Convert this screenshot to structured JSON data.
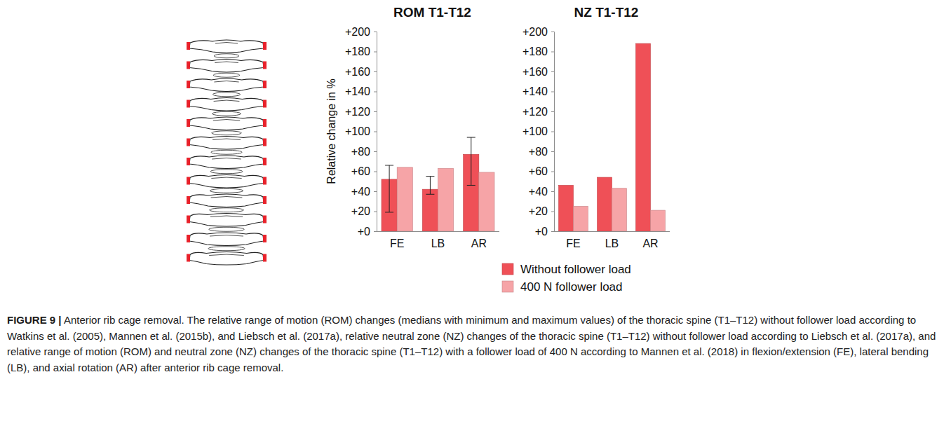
{
  "chart_data": [
    {
      "type": "bar",
      "title": "ROM T1-T12",
      "ylabel": "Relative change in %",
      "categories": [
        "FE",
        "LB",
        "AR"
      ],
      "series": [
        {
          "name": "Without follower load",
          "color": "#ef5057",
          "values": [
            52,
            42,
            77
          ],
          "min": [
            19,
            37,
            46
          ],
          "max": [
            66,
            55,
            94
          ]
        },
        {
          "name": "400 N follower load",
          "color": "#f6a4a7",
          "values": [
            64,
            63,
            59
          ]
        }
      ],
      "ylim": [
        0,
        200
      ],
      "yticks": [
        {
          "value": 0,
          "label": "+0"
        },
        {
          "value": 20,
          "label": "+20"
        },
        {
          "value": 40,
          "label": "+40"
        },
        {
          "value": 60,
          "label": "+60"
        },
        {
          "value": 80,
          "label": "+80"
        },
        {
          "value": 100,
          "label": "+100"
        },
        {
          "value": 120,
          "label": "+120"
        },
        {
          "value": 140,
          "label": "+140"
        },
        {
          "value": 160,
          "label": "+160"
        },
        {
          "value": 180,
          "label": "+180"
        },
        {
          "value": 200,
          "label": "+200"
        }
      ],
      "grid": false,
      "legend": "bottom"
    },
    {
      "type": "bar",
      "title": "NZ T1-T12",
      "categories": [
        "FE",
        "LB",
        "AR"
      ],
      "series": [
        {
          "color": "#ef5057",
          "values": [
            46,
            54,
            188
          ]
        },
        {
          "color": "#f6a4a7",
          "values": [
            25,
            43,
            21
          ]
        }
      ],
      "ylim": [
        0,
        200
      ],
      "yticks": [
        {
          "value": 0,
          "label": "+0"
        },
        {
          "value": 20,
          "label": "+20"
        },
        {
          "value": 40,
          "label": "+40"
        },
        {
          "value": 60,
          "label": "+60"
        },
        {
          "value": 80,
          "label": "+80"
        },
        {
          "value": 100,
          "label": "+100"
        },
        {
          "value": 120,
          "label": "+120"
        },
        {
          "value": 140,
          "label": "+140"
        },
        {
          "value": 160,
          "label": "+160"
        },
        {
          "value": 180,
          "label": "+180"
        },
        {
          "value": 200,
          "label": "+200"
        }
      ],
      "grid": false
    }
  ],
  "caption": {
    "label": "FIGURE 9 |",
    "text": "Anterior rib cage removal. The relative range of motion (ROM) changes (medians with minimum and maximum values) of the thoracic spine (T1–T12) without follower load according to Watkins et al. (2005), Mannen et al. (2015b), and Liebsch et al. (2017a), relative neutral zone (NZ) changes of the thoracic spine (T1–T12) without follower load according to Liebsch et al. (2017a), and relative range of motion (ROM) and neutral zone (NZ) changes of the thoracic spine (T1–T12) with a follower load of 400 N according to Mannen et al. (2018) in flexion/extension (FE), lateral bending (LB), and axial rotation (AR) after anterior rib cage removal."
  }
}
